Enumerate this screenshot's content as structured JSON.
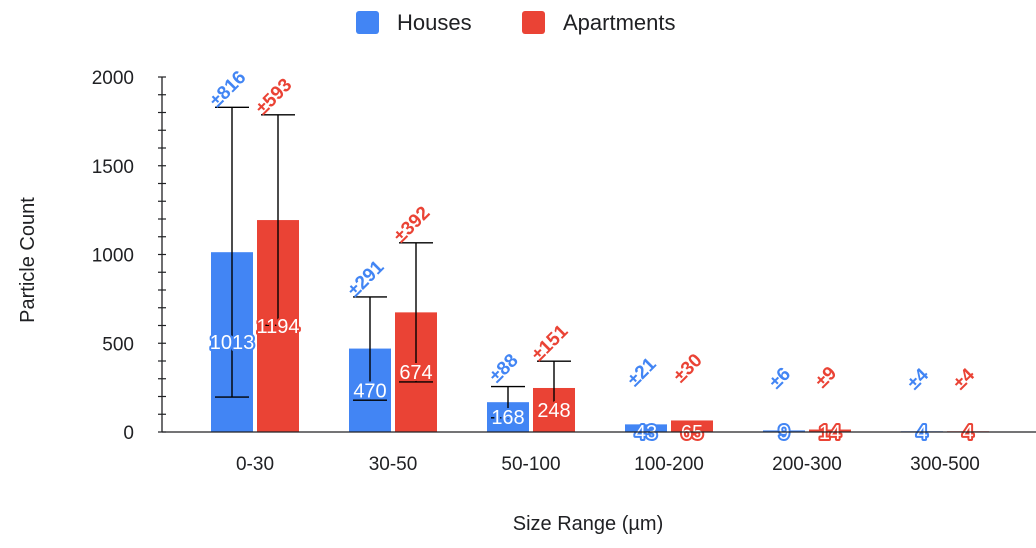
{
  "chart_data": {
    "type": "bar",
    "categories": [
      "0-30",
      "30-50",
      "50-100",
      "100-200",
      "200-300",
      "300-500"
    ],
    "series": [
      {
        "name": "Houses",
        "color": "#4285f4",
        "values": [
          1013,
          470,
          168,
          43,
          9,
          4
        ],
        "errors": [
          816,
          291,
          88,
          21,
          6,
          4
        ],
        "value_labels": [
          "1013",
          "470",
          "168",
          "43",
          "9",
          "4"
        ],
        "error_labels": [
          "±816",
          "±291",
          "±88",
          "±21",
          "±6",
          "±4"
        ]
      },
      {
        "name": "Apartments",
        "color": "#ea4335",
        "values": [
          1194,
          674,
          248,
          65,
          14,
          4
        ],
        "errors": [
          593,
          392,
          151,
          30,
          9,
          4
        ],
        "value_labels": [
          "1194",
          "674",
          "248",
          "65",
          "14",
          "4"
        ],
        "error_labels": [
          "±593",
          "±392",
          "±151",
          "±30",
          "±9",
          "±4"
        ]
      }
    ],
    "y_ticks": [
      "0",
      "500",
      "1000",
      "1500",
      "2000"
    ],
    "ylim": [
      0,
      2000
    ],
    "xlabel": "Size Range (µm)",
    "ylabel": "Particle Count",
    "legend_position": "top",
    "grid": false
  }
}
